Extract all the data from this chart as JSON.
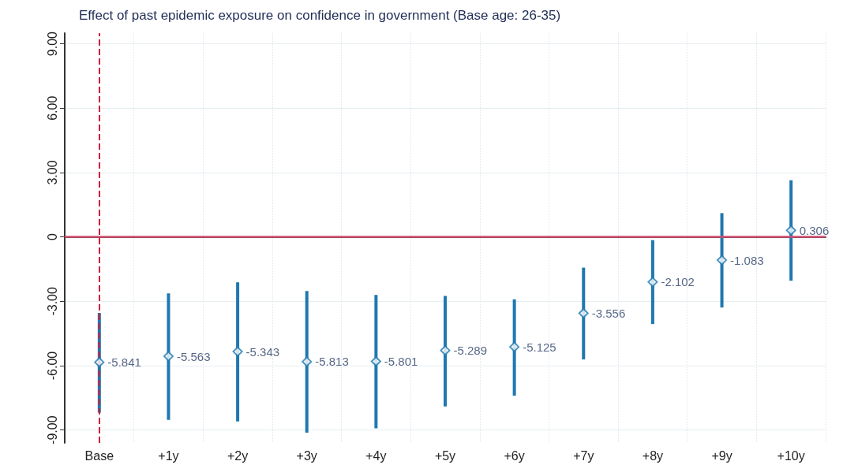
{
  "chart_data": {
    "type": "scatter",
    "title": "Effect of past epidemic exposure on confidence in government (Base age: 26-35)",
    "categories": [
      "Base",
      "+1y",
      "+2y",
      "+3y",
      "+4y",
      "+5y",
      "+6y",
      "+7y",
      "+8y",
      "+9y",
      "+10y"
    ],
    "values": [
      -5.841,
      -5.563,
      -5.343,
      -5.813,
      -5.801,
      -5.289,
      -5.125,
      -3.556,
      -2.102,
      -1.083,
      0.306
    ],
    "errors": [
      [
        -8.19,
        -3.54
      ],
      [
        -8.53,
        -2.63
      ],
      [
        -8.6,
        -2.12
      ],
      [
        -9.12,
        -2.52
      ],
      [
        -8.92,
        -2.7
      ],
      [
        -7.9,
        -2.75
      ],
      [
        -7.4,
        -2.91
      ],
      [
        -5.71,
        -1.43
      ],
      [
        -4.06,
        -0.15
      ],
      [
        -3.29,
        1.11
      ],
      [
        -2.04,
        2.64
      ]
    ],
    "color": "#1f78b0",
    "marker": "diamond",
    "data_labels": true,
    "grid": true,
    "ylim": [
      -9.6,
      9.5
    ],
    "yticks": [
      {
        "value": 9,
        "label": "9.00"
      },
      {
        "value": 6,
        "label": "6.00"
      },
      {
        "value": 3,
        "label": "3.00"
      },
      0,
      {
        "value": -3,
        "label": "-3.00"
      },
      {
        "value": -6,
        "label": "-6.00"
      },
      {
        "value": -9,
        "label": "-9.00"
      }
    ],
    "ref_lines": [
      {
        "axis": "x",
        "value": "Base",
        "color": "#d0203a",
        "line_style": "dashed"
      },
      {
        "axis": "y",
        "value": 0,
        "color": "#d05070",
        "line_style": "solid"
      }
    ]
  }
}
